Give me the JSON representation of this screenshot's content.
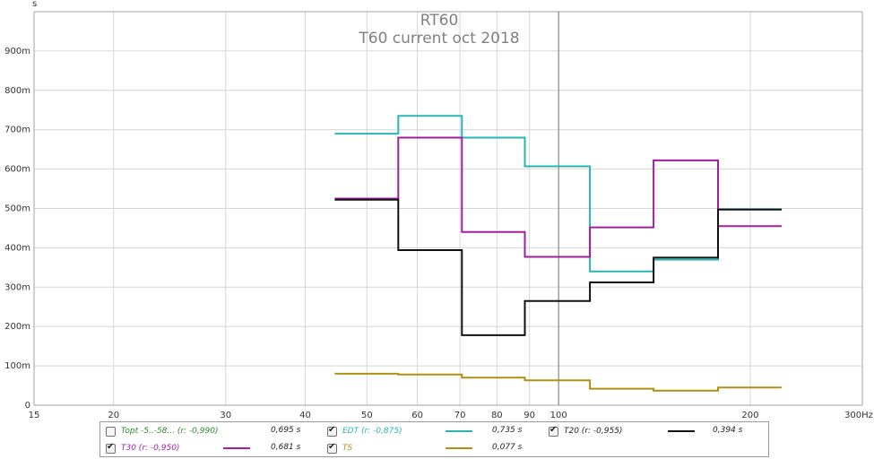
{
  "chart_data": {
    "type": "line",
    "title": "RT60",
    "subtitle": "T60 current oct 2018",
    "ylabel": "s",
    "xunit": "Hz",
    "xscale": "log",
    "xlim": [
      15,
      300
    ],
    "ylim": [
      0,
      1.0
    ],
    "grid": true,
    "x_ticks": [
      15,
      20,
      30,
      40,
      50,
      60,
      70,
      80,
      90,
      100,
      200,
      300
    ],
    "x_tick_labels": [
      "15",
      "20",
      "30",
      "40",
      "50",
      "60",
      "70",
      "80",
      "90",
      "100",
      "200",
      "300Hz"
    ],
    "y_ticks": [
      0,
      0.1,
      0.2,
      0.3,
      0.4,
      0.5,
      0.6,
      0.7,
      0.8,
      0.9
    ],
    "y_tick_labels": [
      "0",
      "100m",
      "200m",
      "300m",
      "400m",
      "500m",
      "600m",
      "700m",
      "800m",
      "900m"
    ],
    "cursor_x": 100,
    "band_edges": [
      44.5,
      56,
      70.5,
      88.5,
      112,
      141,
      178,
      224
    ],
    "series": [
      {
        "key": "edt",
        "color": "#2ab5b5",
        "values": [
          0.69,
          0.735,
          0.68,
          0.607,
          0.34,
          0.37,
          0.498
        ]
      },
      {
        "key": "t30",
        "color": "#a01fa0",
        "values": [
          0.525,
          0.68,
          0.44,
          0.377,
          0.452,
          0.622,
          0.455
        ]
      },
      {
        "key": "t20",
        "color": "#111111",
        "values": [
          0.522,
          0.394,
          0.178,
          0.265,
          0.312,
          0.375,
          0.497
        ]
      },
      {
        "key": "ts",
        "color": "#b09010",
        "values": [
          0.08,
          0.078,
          0.07,
          0.063,
          0.042,
          0.037,
          0.045
        ]
      }
    ]
  },
  "legend": {
    "items": [
      {
        "label": "Topt -5..-58... (r: -0,990)",
        "value": "0,695 s",
        "checked": false,
        "label_color": "#2e8b2e",
        "line_color": ""
      },
      {
        "label": "EDT (r: -0,875)",
        "value": "0,735 s",
        "checked": true,
        "label_color": "#2ab5b5",
        "line_color": "#2ab5b5"
      },
      {
        "label": "T20 (r: -0,955)",
        "value": "0,394 s",
        "checked": true,
        "label_color": "#222222",
        "line_color": "#111111"
      },
      {
        "label": "T30 (r: -0,950)",
        "value": "0,681 s",
        "checked": true,
        "label_color": "#a01fa0",
        "line_color": "#a01fa0"
      },
      {
        "label": "TS",
        "value": "0,077 s",
        "checked": true,
        "label_color": "#b09010",
        "line_color": "#b09010"
      }
    ]
  }
}
